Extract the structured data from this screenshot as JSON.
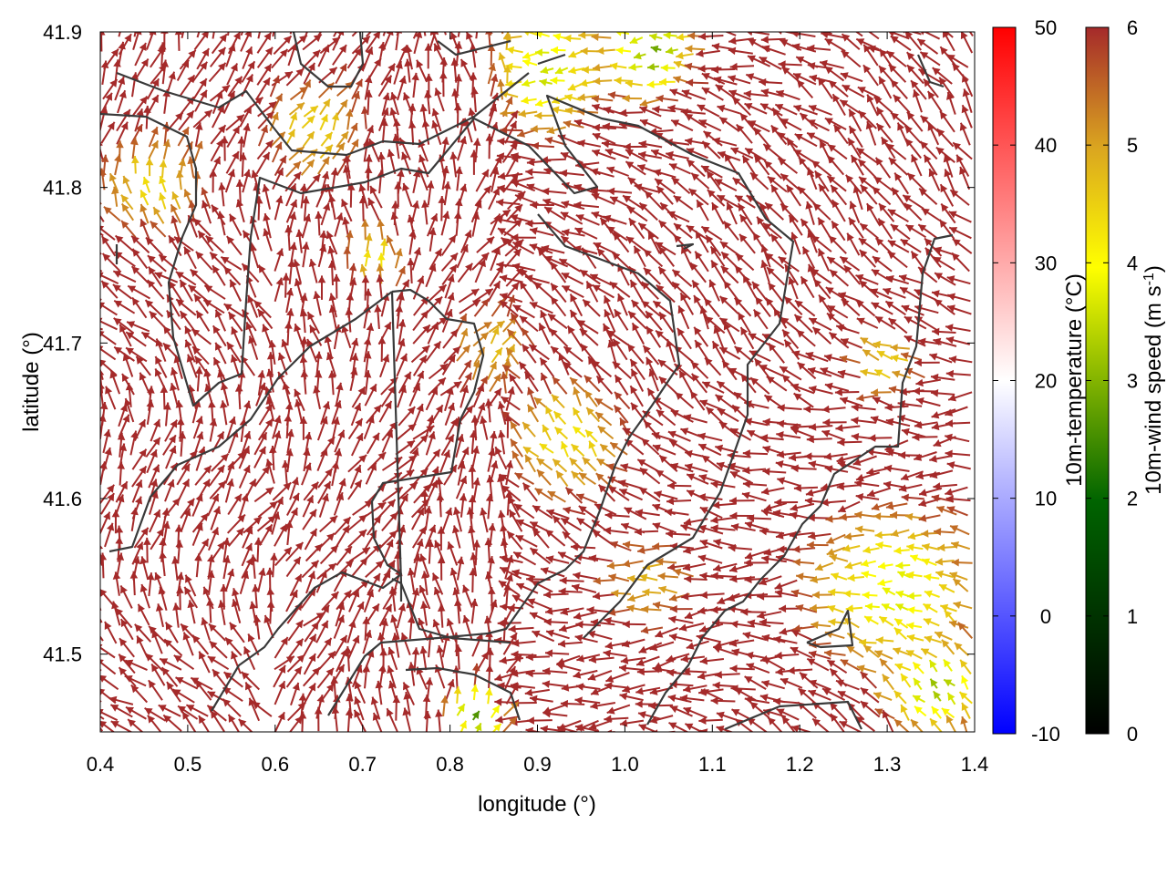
{
  "chart_data": {
    "type": "vector-field",
    "xlabel": "longitude (°)",
    "ylabel": "latitude (°)",
    "xlim": [
      0.4,
      1.4
    ],
    "ylim": [
      41.45,
      41.9
    ],
    "xticks": [
      "0.4",
      "0.5",
      "0.6",
      "0.7",
      "0.8",
      "0.9",
      "1.0",
      "1.1",
      "1.2",
      "1.3",
      "1.4"
    ],
    "yticks": [
      "41.5",
      "41.6",
      "41.7",
      "41.8",
      "41.9"
    ],
    "grid": false,
    "background": "white (10m-temperature ≈ 20 °C across the domain)",
    "vector_color_dominant": "#a52a2a",
    "colorbars": [
      {
        "name": "10m-temperature (°C)",
        "range": [
          -10,
          50
        ],
        "ticks": [
          "50",
          "40",
          "30",
          "20",
          "10",
          "0",
          "-10"
        ],
        "colors": [
          "#0000ff",
          "#ffffff",
          "#ff0000"
        ]
      },
      {
        "name": "10m-wind speed (m s-1)",
        "range": [
          0,
          6
        ],
        "ticks": [
          "6",
          "5",
          "4",
          "3",
          "2",
          "1",
          "0"
        ],
        "colors": [
          "#000000",
          "#006400",
          "#ffff00",
          "#daa520",
          "#a52a2a"
        ]
      }
    ]
  }
}
